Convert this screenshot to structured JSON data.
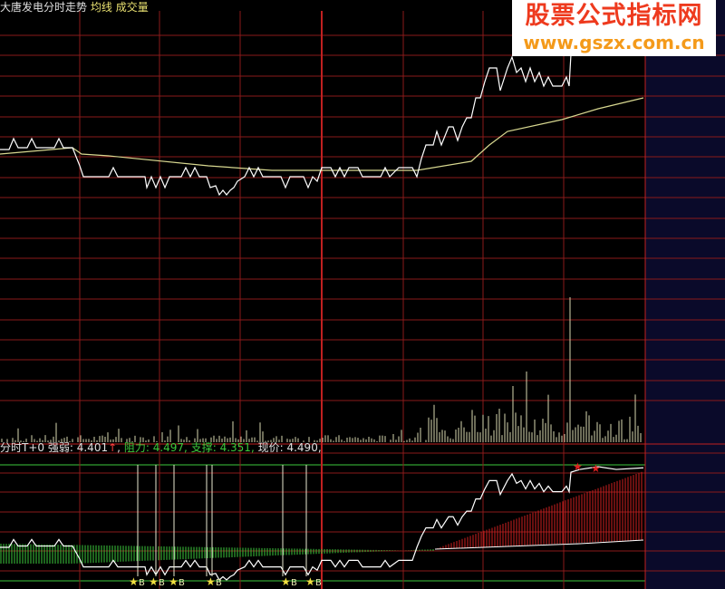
{
  "header": {
    "title": "大唐发电分时走势",
    "avg_line_label": "均线",
    "volume_label": "成交量"
  },
  "indicator": {
    "name": "分时T+0",
    "strength_label": "强弱:",
    "strength_value": "4.401",
    "strength_arrow": "↑",
    "resistance_label": "阻力:",
    "resistance_value": "4.497",
    "support_label": "支撑:",
    "support_value": "4.351",
    "price_label": "现价:",
    "price_value": "4.490"
  },
  "signals": {
    "buy_marker": "B"
  },
  "watermark": {
    "line1": "股票公式指标网",
    "line2": "www.gszx.com.cn"
  },
  "colors": {
    "grid": "#8a1a1a",
    "grid_bold": "#c02020",
    "price": "#ffffff",
    "avg": "#d8d890",
    "green": "#3cc83c",
    "red": "#d02020",
    "future_area": "#0a0a2a"
  }
}
